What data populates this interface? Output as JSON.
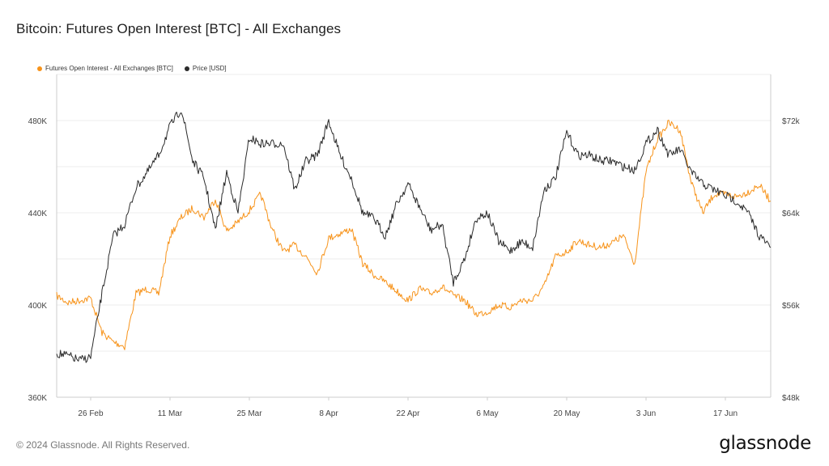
{
  "header": {
    "title": "Bitcoin: Futures Open Interest [BTC] - All Exchanges"
  },
  "footer": {
    "copyright": "© 2024 Glassnode. All Rights Reserved.",
    "brand": "glassnode"
  },
  "colors": {
    "oi": "#f7931a",
    "price": "#2b2b2b",
    "grid": "#eeeeee",
    "axis": "#cccccc",
    "text": "#444444"
  },
  "chart_data": {
    "type": "line",
    "grid": true,
    "legend_position": "top-left",
    "x_ticks": [
      "26 Feb",
      "11 Mar",
      "25 Mar",
      "8 Apr",
      "22 Apr",
      "6 May",
      "20 May",
      "3 Jun",
      "17 Jun"
    ],
    "x_range": [
      "2024-02-20",
      "2024-06-25"
    ],
    "y_left": {
      "label": "",
      "ticks": [
        "360K",
        "400K",
        "440K",
        "480K"
      ],
      "range": [
        360000,
        500000
      ]
    },
    "y_right": {
      "label": "",
      "ticks": [
        "$48k",
        "$56k",
        "$64k",
        "$72k"
      ],
      "range": [
        48000,
        76000
      ]
    },
    "series": [
      {
        "name": "Futures Open Interest - All Exchanges [BTC]",
        "axis": "left",
        "color": "#f7931a",
        "x": [
          "2024-02-20",
          "2024-02-22",
          "2024-02-24",
          "2024-02-26",
          "2024-02-28",
          "2024-03-01",
          "2024-03-03",
          "2024-03-05",
          "2024-03-07",
          "2024-03-09",
          "2024-03-11",
          "2024-03-13",
          "2024-03-15",
          "2024-03-17",
          "2024-03-19",
          "2024-03-21",
          "2024-03-23",
          "2024-03-25",
          "2024-03-27",
          "2024-03-29",
          "2024-03-31",
          "2024-04-02",
          "2024-04-04",
          "2024-04-06",
          "2024-04-08",
          "2024-04-10",
          "2024-04-12",
          "2024-04-14",
          "2024-04-16",
          "2024-04-18",
          "2024-04-20",
          "2024-04-22",
          "2024-04-24",
          "2024-04-26",
          "2024-04-28",
          "2024-04-30",
          "2024-05-02",
          "2024-05-04",
          "2024-05-06",
          "2024-05-08",
          "2024-05-10",
          "2024-05-12",
          "2024-05-14",
          "2024-05-16",
          "2024-05-18",
          "2024-05-20",
          "2024-05-22",
          "2024-05-24",
          "2024-05-26",
          "2024-05-28",
          "2024-05-30",
          "2024-06-01",
          "2024-06-03",
          "2024-06-05",
          "2024-06-07",
          "2024-06-09",
          "2024-06-11",
          "2024-06-13",
          "2024-06-15",
          "2024-06-17",
          "2024-06-19",
          "2024-06-21",
          "2024-06-23",
          "2024-06-25"
        ],
        "values": [
          404000,
          401000,
          402000,
          403000,
          388000,
          384000,
          382000,
          405000,
          407000,
          405000,
          430000,
          438000,
          442000,
          438000,
          446000,
          432000,
          436000,
          441000,
          448000,
          433000,
          423000,
          426000,
          421000,
          414000,
          429000,
          431000,
          433000,
          418000,
          413000,
          410000,
          406000,
          402000,
          407000,
          405000,
          408000,
          404000,
          402000,
          396000,
          397000,
          400000,
          399000,
          402000,
          402000,
          408000,
          421000,
          423000,
          428000,
          426000,
          425000,
          427000,
          430000,
          418000,
          458000,
          472000,
          479000,
          476000,
          453000,
          440000,
          448000,
          448000,
          447000,
          449000,
          452000,
          445000
        ]
      },
      {
        "name": "Price [USD]",
        "axis": "right",
        "color": "#2b2b2b",
        "x": [
          "2024-02-20",
          "2024-02-22",
          "2024-02-24",
          "2024-02-26",
          "2024-02-28",
          "2024-03-01",
          "2024-03-03",
          "2024-03-05",
          "2024-03-07",
          "2024-03-09",
          "2024-03-11",
          "2024-03-13",
          "2024-03-15",
          "2024-03-17",
          "2024-03-19",
          "2024-03-21",
          "2024-03-23",
          "2024-03-25",
          "2024-03-27",
          "2024-03-29",
          "2024-03-31",
          "2024-04-02",
          "2024-04-04",
          "2024-04-06",
          "2024-04-08",
          "2024-04-10",
          "2024-04-12",
          "2024-04-14",
          "2024-04-16",
          "2024-04-18",
          "2024-04-20",
          "2024-04-22",
          "2024-04-24",
          "2024-04-26",
          "2024-04-28",
          "2024-04-30",
          "2024-05-02",
          "2024-05-04",
          "2024-05-06",
          "2024-05-08",
          "2024-05-10",
          "2024-05-12",
          "2024-05-14",
          "2024-05-16",
          "2024-05-18",
          "2024-05-20",
          "2024-05-22",
          "2024-05-24",
          "2024-05-26",
          "2024-05-28",
          "2024-05-30",
          "2024-06-01",
          "2024-06-03",
          "2024-06-05",
          "2024-06-07",
          "2024-06-09",
          "2024-06-11",
          "2024-06-13",
          "2024-06-15",
          "2024-06-17",
          "2024-06-19",
          "2024-06-21",
          "2024-06-23",
          "2024-06-25"
        ],
        "values": [
          51800,
          51600,
          51200,
          51500,
          57000,
          62000,
          63000,
          66200,
          67500,
          69000,
          71500,
          73000,
          68500,
          67000,
          62500,
          67500,
          64000,
          70500,
          70000,
          70000,
          70000,
          66000,
          68500,
          69000,
          72000,
          69000,
          67000,
          64000,
          63500,
          62000,
          64800,
          66500,
          64500,
          62500,
          63000,
          58000,
          60000,
          63500,
          64000,
          61500,
          60700,
          61500,
          61000,
          66000,
          67000,
          71000,
          69000,
          69000,
          68500,
          68500,
          68000,
          67700,
          70000,
          71200,
          69000,
          69500,
          67500,
          66500,
          66000,
          65500,
          65000,
          64000,
          62000,
          61000
        ]
      }
    ]
  }
}
